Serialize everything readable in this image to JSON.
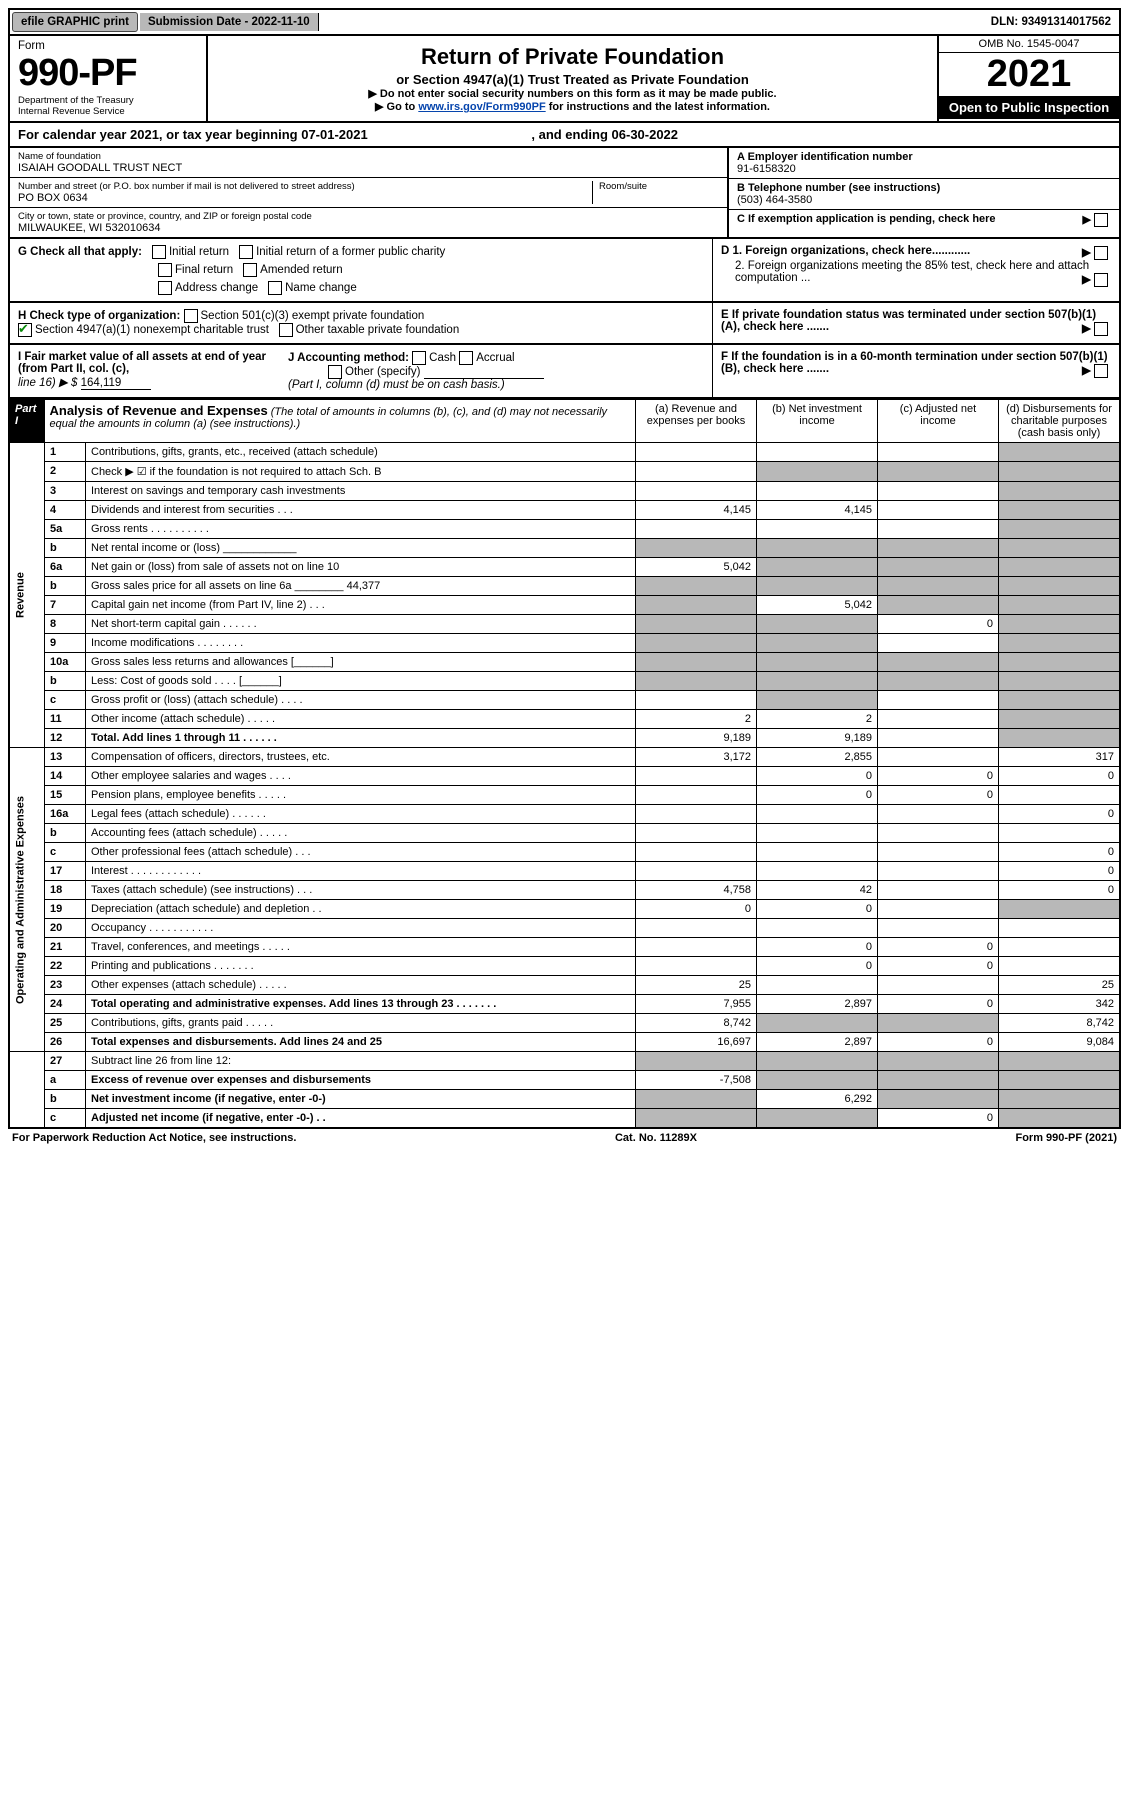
{
  "topbar": {
    "efile": "efile GRAPHIC print",
    "submission": "Submission Date - 2022-11-10",
    "dln": "DLN: 93491314017562"
  },
  "header": {
    "form_word": "Form",
    "form_number": "990-PF",
    "dept1": "Department of the Treasury",
    "dept2": "Internal Revenue Service",
    "title": "Return of Private Foundation",
    "subtitle": "or Section 4947(a)(1) Trust Treated as Private Foundation",
    "note1": "▶ Do not enter social security numbers on this form as it may be made public.",
    "note2_pre": "▶ Go to ",
    "note2_link": "www.irs.gov/Form990PF",
    "note2_post": " for instructions and the latest information.",
    "omb": "OMB No. 1545-0047",
    "year": "2021",
    "open": "Open to Public Inspection"
  },
  "cal_year": {
    "text": "For calendar year 2021, or tax year beginning 07-01-2021",
    "ending": ", and ending 06-30-2022"
  },
  "foundation": {
    "name_label": "Name of foundation",
    "name": "ISAIAH GOODALL TRUST NECT",
    "addr_label": "Number and street (or P.O. box number if mail is not delivered to street address)",
    "room_label": "Room/suite",
    "addr": "PO BOX 0634",
    "city_label": "City or town, state or province, country, and ZIP or foreign postal code",
    "city": "MILWAUKEE, WI  532010634"
  },
  "right_info": {
    "a_label": "A Employer identification number",
    "a_val": "91-6158320",
    "b_label": "B Telephone number (see instructions)",
    "b_val": "(503) 464-3580",
    "c_label": "C If exemption application is pending, check here",
    "d1": "D 1. Foreign organizations, check here............",
    "d2": "2. Foreign organizations meeting the 85% test, check here and attach computation ...",
    "e": "E  If private foundation status was terminated under section 507(b)(1)(A), check here .......",
    "f": "F  If the foundation is in a 60-month termination under section 507(b)(1)(B), check here .......",
    "arrow": "▶"
  },
  "g_section": {
    "g_label": "G Check all that apply:",
    "initial": "Initial return",
    "initial_former": "Initial return of a former public charity",
    "final": "Final return",
    "amended": "Amended return",
    "address": "Address change",
    "name_change": "Name change"
  },
  "h_section": {
    "h_label": "H Check type of organization:",
    "h1": "Section 501(c)(3) exempt private foundation",
    "h2": "Section 4947(a)(1) nonexempt charitable trust",
    "h3": "Other taxable private foundation"
  },
  "i_section": {
    "i_label": "I Fair market value of all assets at end of year (from Part II, col. (c),",
    "i_line": "line 16) ▶ $",
    "i_val": "164,119",
    "j_label": "J Accounting method:",
    "cash": "Cash",
    "accrual": "Accrual",
    "other": "Other (specify)",
    "note": "(Part I, column (d) must be on cash basis.)"
  },
  "part1": {
    "label": "Part I",
    "title": "Analysis of Revenue and Expenses",
    "title_note": " (The total of amounts in columns (b), (c), and (d) may not necessarily equal the amounts in column (a) (see instructions).)",
    "cols": {
      "a": "(a)   Revenue and expenses per books",
      "b": "(b)   Net investment income",
      "c": "(c)   Adjusted net income",
      "d": "(d)  Disbursements for charitable purposes (cash basis only)"
    }
  },
  "sections": {
    "revenue": "Revenue",
    "operating": "Operating and Administrative Expenses"
  },
  "rows": [
    {
      "n": "1",
      "d": "Contributions, gifts, grants, etc., received (attach schedule)",
      "a": "",
      "b": "",
      "c": "",
      "dd": "",
      "dg": true
    },
    {
      "n": "2",
      "d": "Check ▶ ☑ if the foundation is not required to attach Sch. B",
      "a": "",
      "b": "",
      "c": "",
      "dd": "",
      "bg": true,
      "cg": true,
      "dg": true
    },
    {
      "n": "3",
      "d": "Interest on savings and temporary cash investments",
      "a": "",
      "b": "",
      "c": "",
      "dd": "",
      "dg": true
    },
    {
      "n": "4",
      "d": "Dividends and interest from securities   .   .   .",
      "a": "4,145",
      "b": "4,145",
      "c": "",
      "dd": "",
      "dg": true
    },
    {
      "n": "5a",
      "d": "Gross rents   .   .   .   .   .   .   .   .   .   .",
      "a": "",
      "b": "",
      "c": "",
      "dd": "",
      "dg": true
    },
    {
      "n": "b",
      "d": "Net rental income or (loss)  ____________",
      "a": "",
      "b": "",
      "c": "",
      "dd": "",
      "ag": true,
      "bg": true,
      "cg": true,
      "dg": true
    },
    {
      "n": "6a",
      "d": "Net gain or (loss) from sale of assets not on line 10",
      "a": "5,042",
      "b": "",
      "c": "",
      "dd": "",
      "bg": true,
      "cg": true,
      "dg": true
    },
    {
      "n": "b",
      "d": "Gross sales price for all assets on line 6a ________ 44,377",
      "a": "",
      "b": "",
      "c": "",
      "dd": "",
      "ag": true,
      "bg": true,
      "cg": true,
      "dg": true
    },
    {
      "n": "7",
      "d": "Capital gain net income (from Part IV, line 2)   .   .   .",
      "a": "",
      "b": "5,042",
      "c": "",
      "dd": "",
      "ag": true,
      "cg": true,
      "dg": true
    },
    {
      "n": "8",
      "d": "Net short-term capital gain   .   .   .   .   .   .",
      "a": "",
      "b": "",
      "c": "0",
      "dd": "",
      "ag": true,
      "bg": true,
      "dg": true
    },
    {
      "n": "9",
      "d": "Income modifications   .   .   .   .   .   .   .   .",
      "a": "",
      "b": "",
      "c": "",
      "dd": "",
      "ag": true,
      "bg": true,
      "dg": true
    },
    {
      "n": "10a",
      "d": "Gross sales less returns and allowances  [______]",
      "a": "",
      "b": "",
      "c": "",
      "dd": "",
      "ag": true,
      "bg": true,
      "cg": true,
      "dg": true
    },
    {
      "n": "b",
      "d": "Less: Cost of goods sold   .   .   .   .  [______]",
      "a": "",
      "b": "",
      "c": "",
      "dd": "",
      "ag": true,
      "bg": true,
      "cg": true,
      "dg": true
    },
    {
      "n": "c",
      "d": "Gross profit or (loss) (attach schedule)   .   .   .   .",
      "a": "",
      "b": "",
      "c": "",
      "dd": "",
      "bg": true,
      "dg": true
    },
    {
      "n": "11",
      "d": "Other income (attach schedule)   .   .   .   .   .",
      "a": "2",
      "b": "2",
      "c": "",
      "dd": "",
      "dg": true
    },
    {
      "n": "12",
      "d": "Total. Add lines 1 through 11   .   .   .   .   .   .",
      "a": "9,189",
      "b": "9,189",
      "c": "",
      "dd": "",
      "bold": true,
      "dg": true
    }
  ],
  "rows2": [
    {
      "n": "13",
      "d": "Compensation of officers, directors, trustees, etc.",
      "a": "3,172",
      "b": "2,855",
      "c": "",
      "dd": "317"
    },
    {
      "n": "14",
      "d": "Other employee salaries and wages   .   .   .   .",
      "a": "",
      "b": "0",
      "c": "0",
      "dd": "0"
    },
    {
      "n": "15",
      "d": "Pension plans, employee benefits   .   .   .   .   .",
      "a": "",
      "b": "0",
      "c": "0",
      "dd": ""
    },
    {
      "n": "16a",
      "d": "Legal fees (attach schedule)   .   .   .   .   .   .",
      "a": "",
      "b": "",
      "c": "",
      "dd": "0"
    },
    {
      "n": "b",
      "d": "Accounting fees (attach schedule)   .   .   .   .   .",
      "a": "",
      "b": "",
      "c": "",
      "dd": ""
    },
    {
      "n": "c",
      "d": "Other professional fees (attach schedule)   .   .   .",
      "a": "",
      "b": "",
      "c": "",
      "dd": "0"
    },
    {
      "n": "17",
      "d": "Interest   .   .   .   .   .   .   .   .   .   .   .   .",
      "a": "",
      "b": "",
      "c": "",
      "dd": "0"
    },
    {
      "n": "18",
      "d": "Taxes (attach schedule) (see instructions)   .   .   .",
      "a": "4,758",
      "b": "42",
      "c": "",
      "dd": "0"
    },
    {
      "n": "19",
      "d": "Depreciation (attach schedule) and depletion   .   .",
      "a": "0",
      "b": "0",
      "c": "",
      "dd": "",
      "dg": true
    },
    {
      "n": "20",
      "d": "Occupancy   .   .   .   .   .   .   .   .   .   .   .",
      "a": "",
      "b": "",
      "c": "",
      "dd": ""
    },
    {
      "n": "21",
      "d": "Travel, conferences, and meetings   .   .   .   .   .",
      "a": "",
      "b": "0",
      "c": "0",
      "dd": ""
    },
    {
      "n": "22",
      "d": "Printing and publications   .   .   .   .   .   .   .",
      "a": "",
      "b": "0",
      "c": "0",
      "dd": ""
    },
    {
      "n": "23",
      "d": "Other expenses (attach schedule)   .   .   .   .   .",
      "a": "25",
      "b": "",
      "c": "",
      "dd": "25"
    },
    {
      "n": "24",
      "d": "Total operating and administrative expenses. Add lines 13 through 23   .   .   .   .   .   .   .",
      "a": "7,955",
      "b": "2,897",
      "c": "0",
      "dd": "342",
      "bold": true
    },
    {
      "n": "25",
      "d": "Contributions, gifts, grants paid   .   .   .   .   .",
      "a": "8,742",
      "b": "",
      "c": "",
      "dd": "8,742",
      "bg": true,
      "cg": true
    },
    {
      "n": "26",
      "d": "Total expenses and disbursements. Add lines 24 and 25",
      "a": "16,697",
      "b": "2,897",
      "c": "0",
      "dd": "9,084",
      "bold": true
    }
  ],
  "rows3": [
    {
      "n": "27",
      "d": "Subtract line 26 from line 12:",
      "a": "",
      "b": "",
      "c": "",
      "dd": "",
      "ag": true,
      "bg": true,
      "cg": true,
      "dg": true
    },
    {
      "n": "a",
      "d": "Excess of revenue over expenses and disbursements",
      "a": "-7,508",
      "b": "",
      "c": "",
      "dd": "",
      "bold": true,
      "bg": true,
      "cg": true,
      "dg": true
    },
    {
      "n": "b",
      "d": "Net investment income (if negative, enter -0-)",
      "a": "",
      "b": "6,292",
      "c": "",
      "dd": "",
      "bold": true,
      "ag": true,
      "cg": true,
      "dg": true
    },
    {
      "n": "c",
      "d": "Adjusted net income (if negative, enter -0-)   .   .",
      "a": "",
      "b": "",
      "c": "0",
      "dd": "",
      "bold": true,
      "ag": true,
      "bg": true,
      "dg": true
    }
  ],
  "footer": {
    "left": "For Paperwork Reduction Act Notice, see instructions.",
    "mid": "Cat. No. 11289X",
    "right": "Form 990-PF (2021)"
  },
  "colors": {
    "grey": "#b8b8b8",
    "black": "#000000",
    "link": "#0645ad",
    "check_green": "#0a8a0a"
  }
}
